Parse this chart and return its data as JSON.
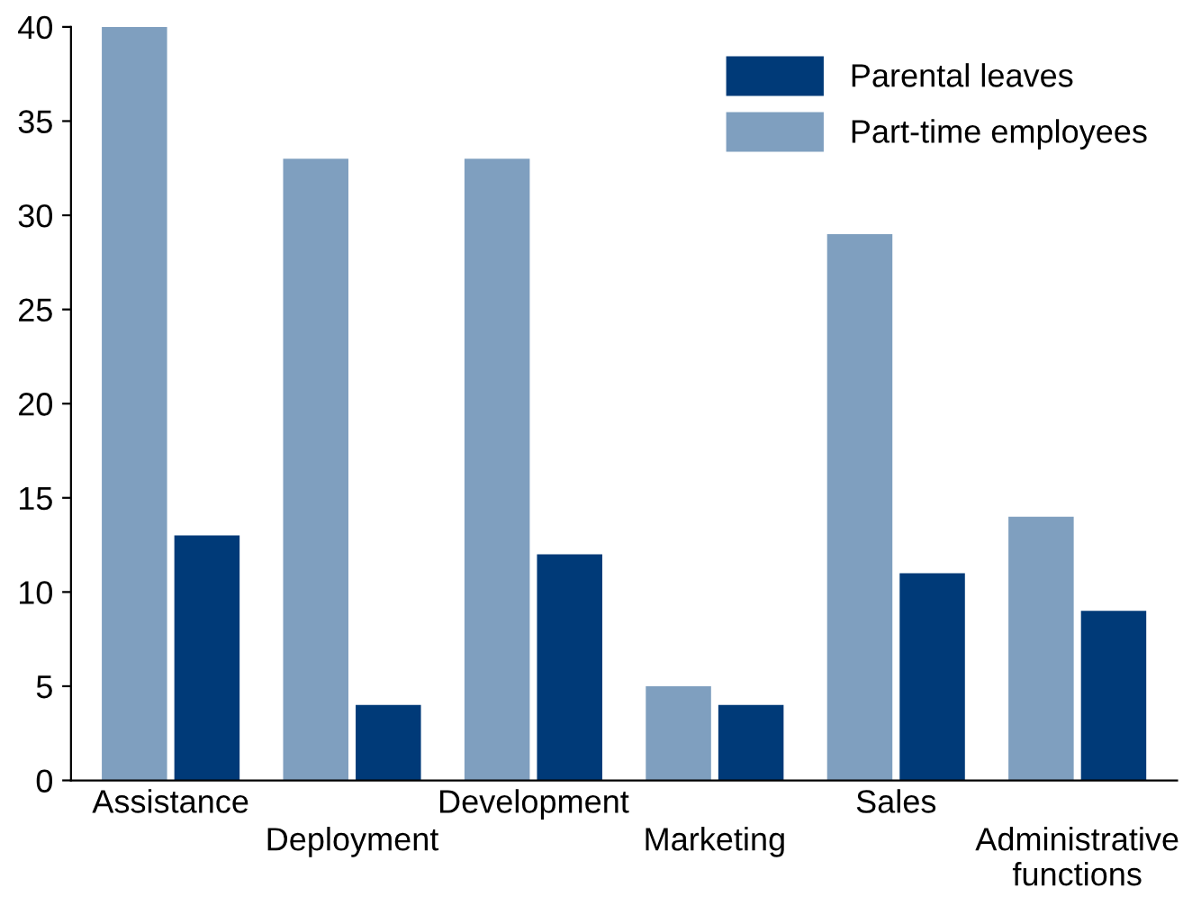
{
  "chart_data": {
    "type": "bar",
    "categories": [
      "Assistance",
      "Deployment",
      "Development",
      "Marketing",
      "Sales",
      "Administrative\nfunctions"
    ],
    "series": [
      {
        "name": "Part-time employees",
        "color": "#7f9fbf",
        "values": [
          40,
          33,
          33,
          5,
          29,
          14
        ]
      },
      {
        "name": "Parental leaves",
        "color": "#003a78",
        "values": [
          13,
          4,
          12,
          4,
          11,
          9
        ]
      }
    ],
    "ylim": [
      0,
      40
    ],
    "yticks": [
      0,
      5,
      10,
      15,
      20,
      25,
      30,
      35,
      40
    ],
    "grid": false,
    "legend": "top right"
  }
}
